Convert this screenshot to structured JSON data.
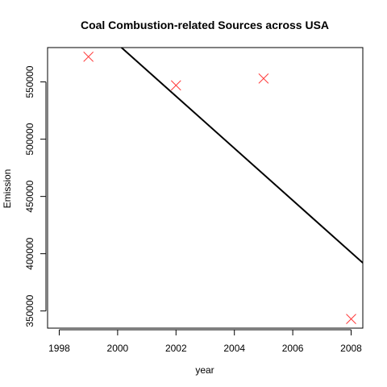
{
  "chart_data": {
    "type": "scatter",
    "title": "Coal Combustion-related Sources across USA",
    "xlabel": "year",
    "ylabel": "Emission",
    "xlim": [
      1997.6,
      2008.4
    ],
    "ylim": [
      335000,
      580000
    ],
    "x_ticks": [
      1998,
      2000,
      2002,
      2004,
      2006,
      2008
    ],
    "y_ticks": [
      350000,
      400000,
      450000,
      500000,
      550000
    ],
    "points": [
      {
        "x": 1999,
        "y": 572000
      },
      {
        "x": 2002,
        "y": 547000
      },
      {
        "x": 2005,
        "y": 553000
      },
      {
        "x": 2008,
        "y": 343000
      }
    ],
    "marker": "x",
    "marker_color": "#ff3b3b",
    "regression_line": {
      "color": "#000000",
      "from": {
        "x": 2000,
        "y": 583000
      },
      "to": {
        "x": 2008.4,
        "y": 392000
      }
    },
    "grid": false,
    "box": true
  }
}
